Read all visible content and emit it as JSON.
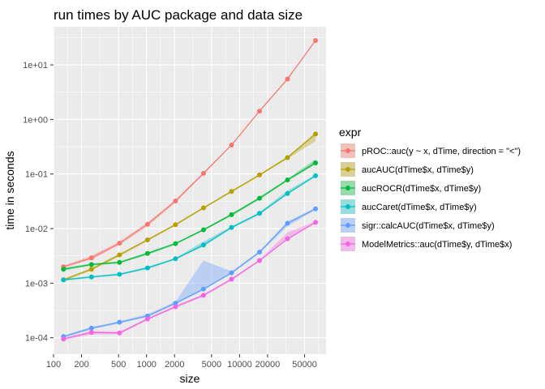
{
  "chart_data": {
    "type": "line",
    "title": "run times by AUC package and data size",
    "xlabel": "size",
    "ylabel": "time in seconds",
    "x_scale": "log10",
    "y_scale": "log10",
    "xlim": [
      100,
      85000
    ],
    "ylim": [
      5e-05,
      50
    ],
    "grid": true,
    "x_ticks": [
      100,
      200,
      500,
      1000,
      2000,
      5000,
      10000,
      20000,
      50000
    ],
    "x_tick_labels": [
      "100",
      "200",
      "500",
      "1000",
      "2000",
      "5000",
      "10000",
      "20000",
      "50000"
    ],
    "y_ticks": [
      0.0001,
      0.001,
      0.01,
      0.1,
      1,
      10
    ],
    "y_tick_labels": [
      "1e-04",
      "1e-03",
      "1e-02",
      "1e-01",
      "1e+00",
      "1e+01"
    ],
    "legend": {
      "title": "expr",
      "placement": "right"
    },
    "x": [
      128,
      256,
      512,
      1024,
      2048,
      4096,
      8192,
      16384,
      32768,
      65536
    ],
    "series": [
      {
        "name": "pROC::auc(y ~ x, dTime, direction = \"<\")",
        "color": "#f8766d",
        "values": [
          0.002,
          0.0029,
          0.0054,
          0.012,
          0.032,
          0.103,
          0.34,
          1.42,
          5.5,
          28
        ],
        "lower": [
          0.0019,
          0.0027,
          0.005,
          0.011,
          0.03,
          0.098,
          0.33,
          1.38,
          5.3,
          27
        ],
        "upper": [
          0.0021,
          0.0032,
          0.0058,
          0.013,
          0.034,
          0.108,
          0.35,
          1.46,
          5.7,
          29
        ]
      },
      {
        "name": "aucAUC(dTime$x, dTime$y)",
        "color": "#b79f00",
        "values": [
          0.00115,
          0.0018,
          0.0033,
          0.0062,
          0.0118,
          0.024,
          0.048,
          0.096,
          0.2,
          0.54
        ],
        "lower": [
          0.0011,
          0.0017,
          0.0031,
          0.0059,
          0.0113,
          0.023,
          0.046,
          0.092,
          0.19,
          0.4
        ],
        "upper": [
          0.0012,
          0.0019,
          0.0035,
          0.0065,
          0.0123,
          0.025,
          0.05,
          0.1,
          0.21,
          0.58
        ]
      },
      {
        "name": "aucROCR(dTime$x, dTime$y)",
        "color": "#00ba38",
        "values": [
          0.0018,
          0.0022,
          0.0024,
          0.0035,
          0.0053,
          0.0095,
          0.018,
          0.036,
          0.078,
          0.16
        ],
        "lower": [
          0.0017,
          0.0021,
          0.0023,
          0.0033,
          0.0051,
          0.0091,
          0.017,
          0.034,
          0.074,
          0.15
        ],
        "upper": [
          0.0019,
          0.0023,
          0.0025,
          0.0037,
          0.0055,
          0.0099,
          0.019,
          0.038,
          0.082,
          0.185
        ]
      },
      {
        "name": "aucCaret(dTime$x, dTime$y)",
        "color": "#00bfc4",
        "values": [
          0.00115,
          0.0013,
          0.00145,
          0.0019,
          0.0028,
          0.005,
          0.0105,
          0.019,
          0.044,
          0.093
        ],
        "lower": [
          0.0011,
          0.00125,
          0.0014,
          0.0018,
          0.0027,
          0.0047,
          0.01,
          0.018,
          0.042,
          0.089
        ],
        "upper": [
          0.0012,
          0.00135,
          0.0015,
          0.002,
          0.0029,
          0.0058,
          0.011,
          0.02,
          0.05,
          0.097
        ]
      },
      {
        "name": "sigr::calcAUC(dTime$x, dTime$y)",
        "color": "#619cff",
        "values": [
          0.000105,
          0.00015,
          0.000192,
          0.00025,
          0.00043,
          0.00078,
          0.00155,
          0.0037,
          0.0125,
          0.023
        ],
        "lower": [
          0.0001,
          0.000142,
          0.000183,
          0.00024,
          0.00041,
          0.00074,
          0.00148,
          0.0035,
          0.011,
          0.022
        ],
        "upper": [
          0.00011,
          0.000158,
          0.000202,
          0.00027,
          0.00046,
          0.0026,
          0.00165,
          0.0039,
          0.0135,
          0.024
        ]
      },
      {
        "name": "ModelMetrics::auc(dTime$y, dTime$x)",
        "color": "#f564e3",
        "values": [
          9.5e-05,
          0.000125,
          0.000122,
          0.00022,
          0.00037,
          0.0006,
          0.00118,
          0.0026,
          0.0065,
          0.013
        ],
        "lower": [
          9e-05,
          0.000115,
          0.000116,
          0.00021,
          0.00035,
          0.00057,
          0.00112,
          0.0025,
          0.0062,
          0.0125
        ],
        "upper": [
          0.0001,
          0.000135,
          0.00013,
          0.00023,
          0.00039,
          0.00063,
          0.00124,
          0.0027,
          0.0085,
          0.0135
        ]
      }
    ]
  }
}
